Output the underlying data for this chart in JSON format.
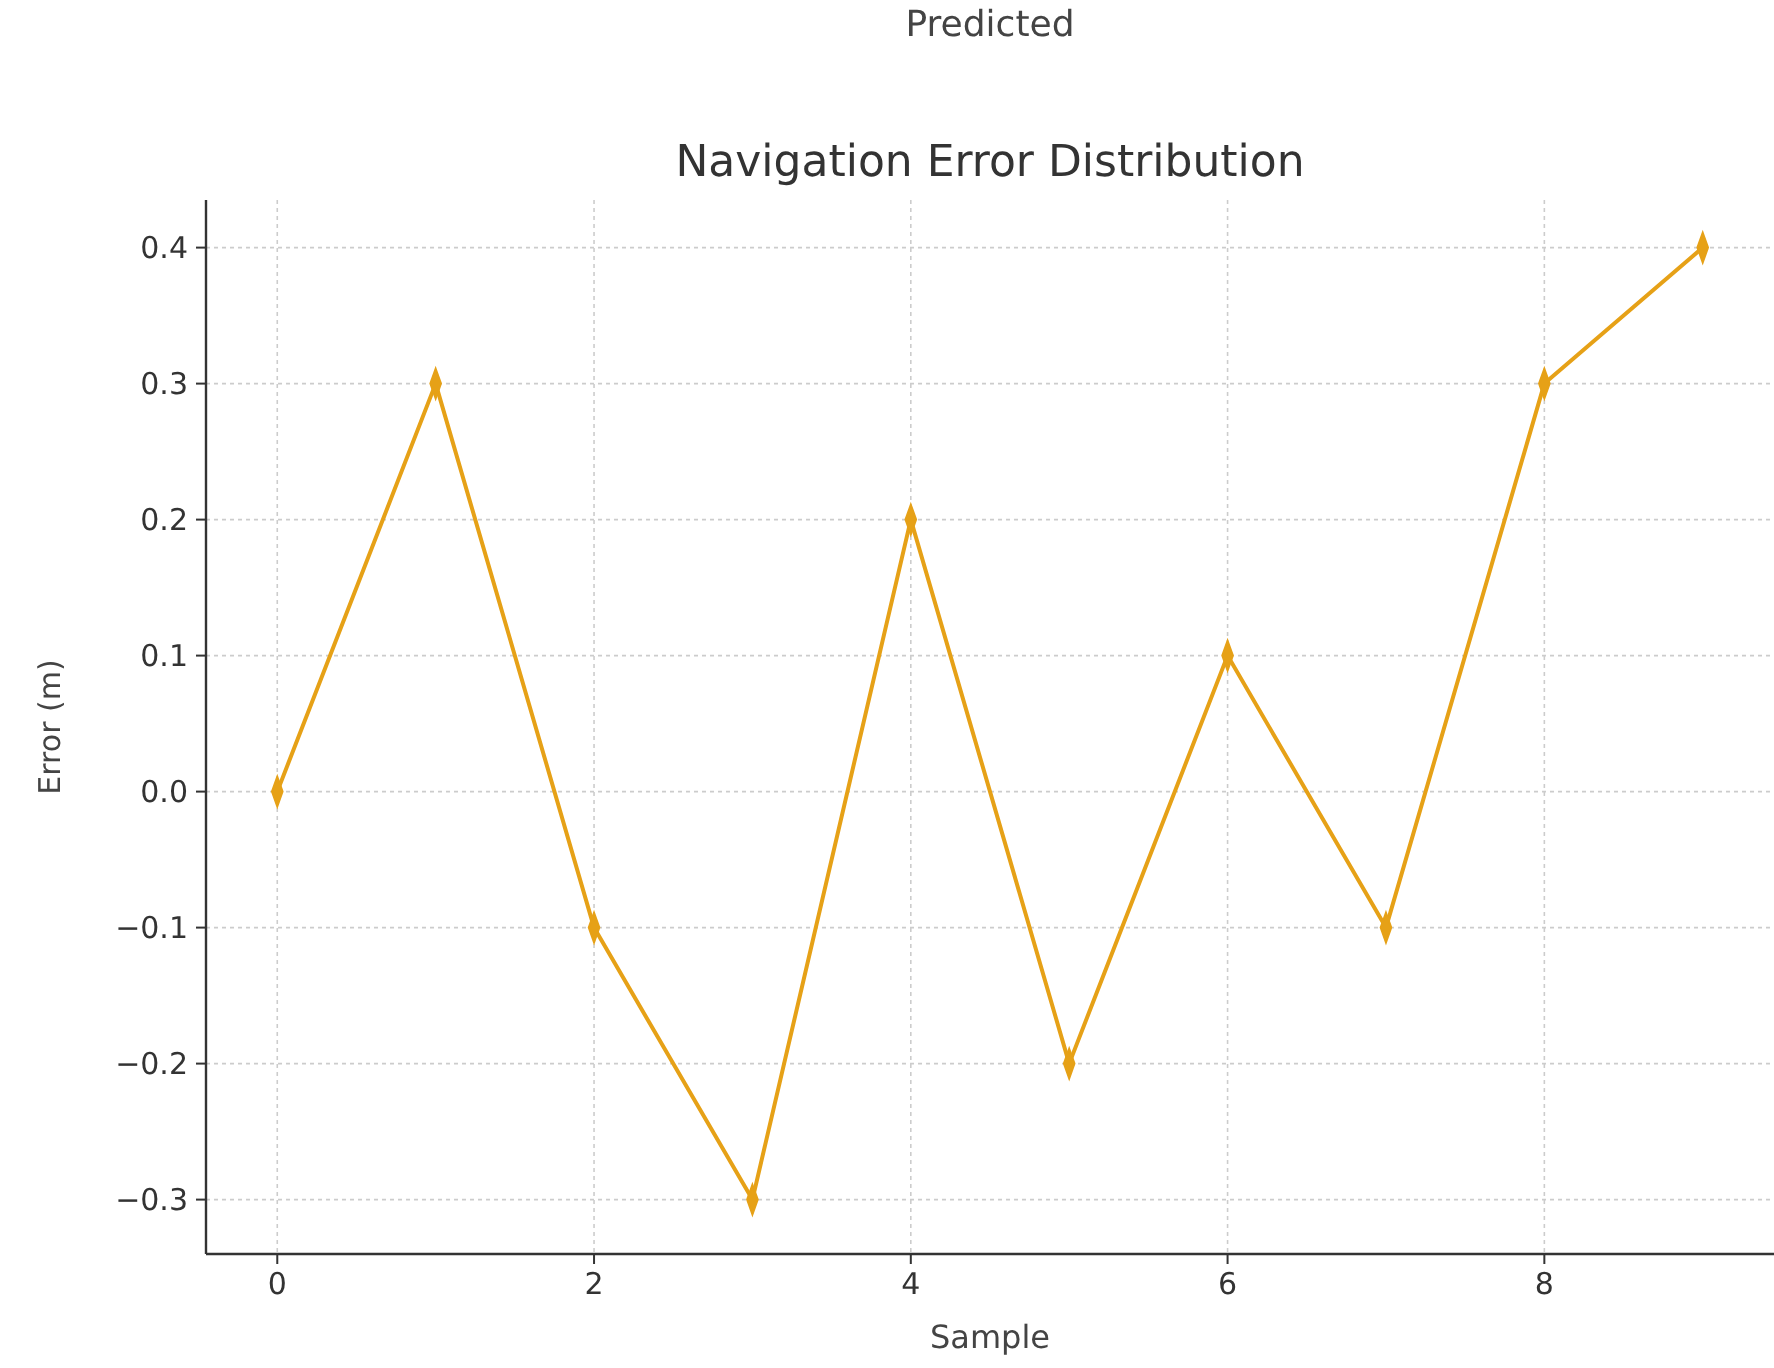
{
  "chart_data": {
    "type": "line",
    "title": "Navigation Error Distribution",
    "xlabel": "Sample",
    "ylabel": "Error (m)",
    "annotations": [
      "Predicted"
    ],
    "x": [
      0,
      1,
      2,
      3,
      4,
      5,
      6,
      7,
      8,
      9
    ],
    "series": [
      {
        "color": "#e6a117",
        "values": [
          0,
          0.3,
          -0.1,
          -0.3,
          0.2,
          -0.2,
          0.1,
          -0.1,
          0.3,
          0.4
        ]
      }
    ],
    "xlim": [
      -0.45,
      9.45
    ],
    "xticks": [
      0,
      2,
      4,
      6,
      8
    ],
    "ylim": [
      -0.34,
      0.435
    ],
    "yticks": [
      {
        "value": -0.3,
        "label": "−0.3"
      },
      {
        "value": -0.2,
        "label": "−0.2"
      },
      {
        "value": -0.1,
        "label": "−0.1"
      },
      {
        "value": 0,
        "label": "0.0"
      },
      {
        "value": 0.1,
        "label": "0.1"
      },
      {
        "value": 0.2,
        "label": "0.2"
      },
      {
        "value": 0.3,
        "label": "0.3"
      },
      {
        "value": 0.4,
        "label": "0.4"
      }
    ],
    "grid": true,
    "marker": "diamond",
    "line_style": "solid"
  }
}
